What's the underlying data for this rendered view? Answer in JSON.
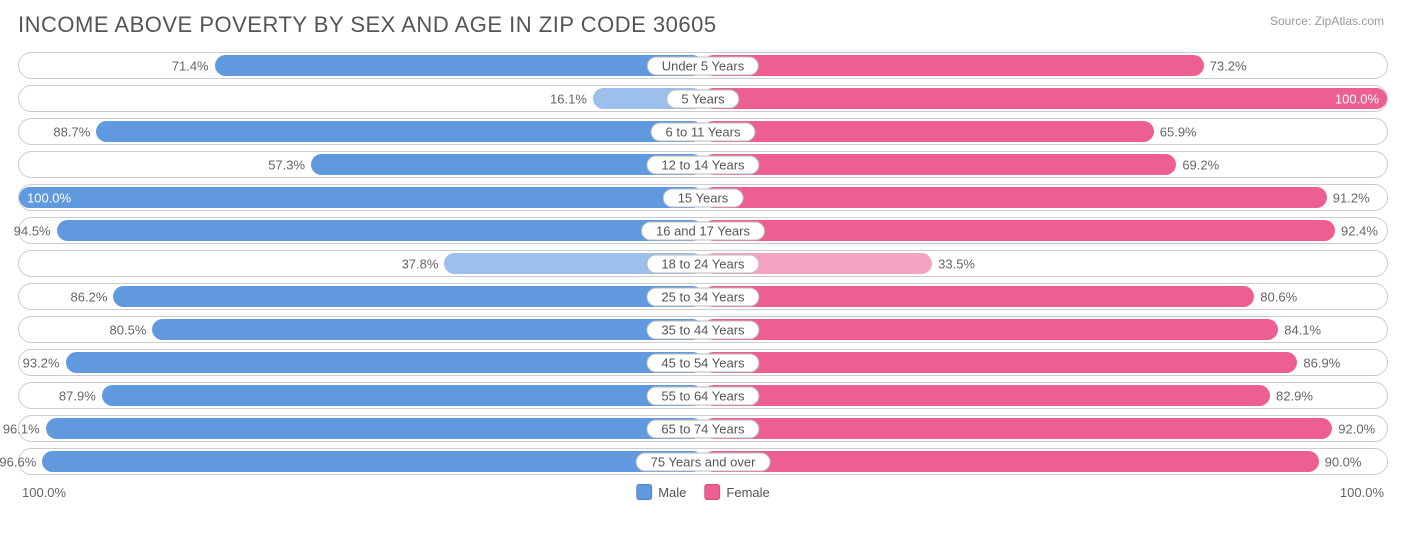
{
  "title": "INCOME ABOVE POVERTY BY SEX AND AGE IN ZIP CODE 30605",
  "source": "Source: ZipAtlas.com",
  "chart": {
    "type": "diverging-bar",
    "max": 100.0,
    "axis_left": "100.0%",
    "axis_right": "100.0%",
    "male_color": "#6099de",
    "female_color": "#ed5e93",
    "male_color_light": "#9cbfeb",
    "female_color_light": "#f5a3c2",
    "track_border": "#cccccc",
    "background": "#ffffff",
    "label_text_color": "#666666",
    "rows": [
      {
        "category": "Under 5 Years",
        "male": 71.4,
        "female": 73.2,
        "male_light": false,
        "female_light": false
      },
      {
        "category": "5 Years",
        "male": 16.1,
        "female": 100.0,
        "male_light": true,
        "female_light": false
      },
      {
        "category": "6 to 11 Years",
        "male": 88.7,
        "female": 65.9,
        "male_light": false,
        "female_light": false
      },
      {
        "category": "12 to 14 Years",
        "male": 57.3,
        "female": 69.2,
        "male_light": false,
        "female_light": false
      },
      {
        "category": "15 Years",
        "male": 100.0,
        "female": 91.2,
        "male_light": false,
        "female_light": false
      },
      {
        "category": "16 and 17 Years",
        "male": 94.5,
        "female": 92.4,
        "male_light": false,
        "female_light": false
      },
      {
        "category": "18 to 24 Years",
        "male": 37.8,
        "female": 33.5,
        "male_light": true,
        "female_light": true
      },
      {
        "category": "25 to 34 Years",
        "male": 86.2,
        "female": 80.6,
        "male_light": false,
        "female_light": false
      },
      {
        "category": "35 to 44 Years",
        "male": 80.5,
        "female": 84.1,
        "male_light": false,
        "female_light": false
      },
      {
        "category": "45 to 54 Years",
        "male": 93.2,
        "female": 86.9,
        "male_light": false,
        "female_light": false
      },
      {
        "category": "55 to 64 Years",
        "male": 87.9,
        "female": 82.9,
        "male_light": false,
        "female_light": false
      },
      {
        "category": "65 to 74 Years",
        "male": 96.1,
        "female": 92.0,
        "male_light": false,
        "female_light": false
      },
      {
        "category": "75 Years and over",
        "male": 96.6,
        "female": 90.0,
        "male_light": false,
        "female_light": false
      }
    ],
    "legend": {
      "male": "Male",
      "female": "Female"
    }
  }
}
